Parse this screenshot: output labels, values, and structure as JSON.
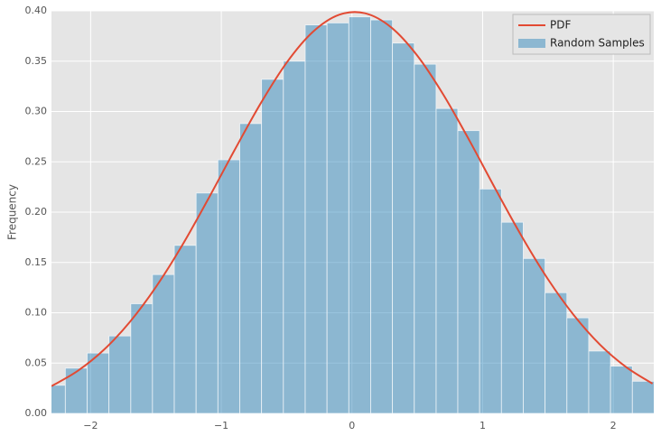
{
  "chart_data": {
    "type": "histogram",
    "ylabel": "Frequency",
    "xlim": [
      -2.3,
      2.31
    ],
    "ylim": [
      0,
      0.4
    ],
    "xticks": [
      {
        "value": -2,
        "label": "−2"
      },
      {
        "value": -1,
        "label": "−1"
      },
      0,
      1,
      2
    ],
    "yticks": [
      {
        "value": 0,
        "label": "0.00"
      },
      {
        "value": 0.05,
        "label": "0.05"
      },
      {
        "value": 0.1,
        "label": "0.10"
      },
      {
        "value": 0.15,
        "label": "0.15"
      },
      {
        "value": 0.2,
        "label": "0.20"
      },
      {
        "value": 0.25,
        "label": "0.25"
      },
      {
        "value": 0.3,
        "label": "0.30"
      },
      {
        "value": 0.35,
        "label": "0.35"
      },
      {
        "value": 0.4,
        "label": "0.40"
      }
    ],
    "grid": true,
    "legend": "upper right",
    "series": [
      {
        "name": "PDF",
        "type": "line",
        "color": "#E24A33",
        "x": [
          -2.3,
          -2.1,
          -1.9,
          -1.7,
          -1.5,
          -1.3,
          -1.1,
          -0.9,
          -0.7,
          -0.5,
          -0.3,
          -0.1,
          0.1,
          0.3,
          0.5,
          0.7,
          0.9,
          1.1,
          1.3,
          1.5,
          1.7,
          1.9,
          2.1,
          2.3
        ],
        "values": [
          0.0271,
          0.0422,
          0.0631,
          0.0909,
          0.1257,
          0.1669,
          0.2131,
          0.2613,
          0.3078,
          0.3485,
          0.379,
          0.396,
          0.3976,
          0.3836,
          0.3555,
          0.3166,
          0.2709,
          0.2226,
          0.1758,
          0.1334,
          0.0973,
          0.0681,
          0.0459,
          0.0296
        ]
      },
      {
        "name": "Random Samples",
        "type": "histogram",
        "color": "#348ABD",
        "bins": [
          -2.361,
          -2.194,
          -2.027,
          -1.86,
          -1.693,
          -1.527,
          -1.36,
          -1.193,
          -1.026,
          -0.859,
          -0.692,
          -0.525,
          -0.358,
          -0.191,
          -0.024,
          0.143,
          0.31,
          0.477,
          0.644,
          0.81,
          0.977,
          1.144,
          1.311,
          1.478,
          1.645,
          1.812,
          1.979,
          2.146,
          2.313
        ],
        "values": [
          0.028,
          0.045,
          0.06,
          0.077,
          0.109,
          0.138,
          0.167,
          0.219,
          0.252,
          0.288,
          0.332,
          0.35,
          0.386,
          0.388,
          0.394,
          0.391,
          0.368,
          0.347,
          0.303,
          0.281,
          0.223,
          0.19,
          0.154,
          0.12,
          0.095,
          0.062,
          0.047,
          0.032
        ]
      }
    ]
  }
}
